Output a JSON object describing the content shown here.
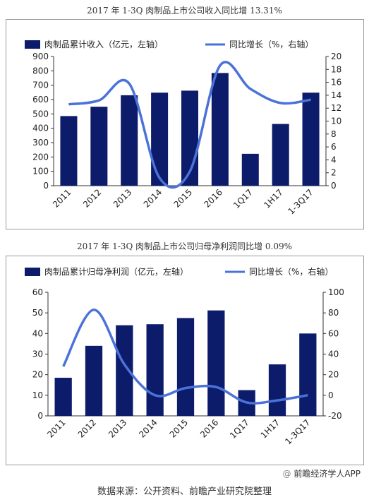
{
  "charts": [
    {
      "title": "2017 年 1-3Q 肉制品上市公司收入同比增 13.31%",
      "bar_legend": "肉制品累计收入（亿元，左轴）",
      "line_legend": "同比增长（%，右轴）"
    },
    {
      "title": "2017 年 1-3Q 肉制品上市公司归母净利润同比增 0.09%",
      "bar_legend": "肉制品累计归母净利润（亿元，左轴）",
      "line_legend": "同比增长（%，右轴）"
    }
  ],
  "credit": "前瞻经济学人APP",
  "source": "数据来源：公开资料、前瞻产业研究院整理",
  "colors": {
    "bar": "#0d1b6b",
    "line": "#4a72d8",
    "axis": "#333333"
  },
  "chart_data": [
    {
      "type": "bar",
      "categories": [
        "2011",
        "2012",
        "2013",
        "2014",
        "2015",
        "2016",
        "1Q17",
        "1H17",
        "1-3Q17"
      ],
      "series": [
        {
          "name": "肉制品累计收入（亿元，左轴）",
          "axis": "left",
          "type": "bar",
          "values": [
            485,
            550,
            630,
            648,
            662,
            785,
            222,
            430,
            648
          ]
        },
        {
          "name": "同比增长（%，右轴）",
          "axis": "right",
          "type": "line",
          "values": [
            12.6,
            13.2,
            15.8,
            1.2,
            2.2,
            18.6,
            15.0,
            12.8,
            13.31
          ]
        }
      ],
      "ylim_left": [
        0,
        900
      ],
      "yticks_left": [
        0,
        100,
        200,
        300,
        400,
        500,
        600,
        700,
        800,
        900
      ],
      "ylim_right": [
        0,
        20
      ],
      "yticks_right": [
        0,
        2,
        4,
        6,
        8,
        10,
        12,
        14,
        16,
        18,
        20
      ],
      "legend_position": "top"
    },
    {
      "type": "bar",
      "categories": [
        "2011",
        "2012",
        "2013",
        "2014",
        "2015",
        "2016",
        "1Q17",
        "1H17",
        "1-3Q17"
      ],
      "series": [
        {
          "name": "肉制品累计归母净利润（亿元，左轴）",
          "axis": "left",
          "type": "bar",
          "values": [
            18.5,
            34,
            44,
            44.5,
            47.5,
            51.2,
            12.5,
            25,
            40
          ]
        },
        {
          "name": "同比增长（%，右轴）",
          "axis": "right",
          "type": "line",
          "values": [
            28,
            83,
            30,
            0,
            7,
            8,
            -7,
            -5,
            0.09
          ]
        }
      ],
      "ylim_left": [
        0,
        60
      ],
      "yticks_left": [
        0,
        10,
        20,
        30,
        40,
        50,
        60
      ],
      "ylim_right": [
        -20,
        100
      ],
      "yticks_right": [
        -20,
        0,
        20,
        40,
        60,
        80,
        100
      ],
      "legend_position": "top"
    }
  ]
}
